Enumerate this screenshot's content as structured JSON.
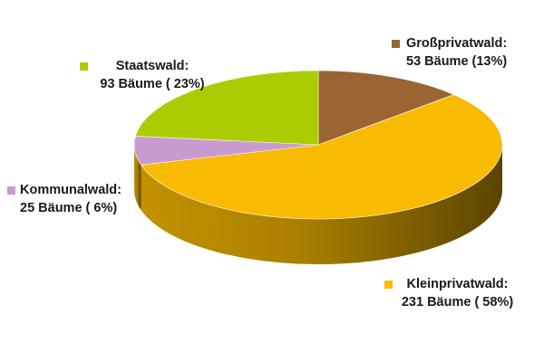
{
  "chart_data": {
    "type": "pie",
    "three_d": true,
    "title": "",
    "unit": "Bäume",
    "slices": [
      {
        "name": "Großprivatwald",
        "value": 53,
        "percent_label": "13%",
        "color": "#9a6433",
        "label_line1": "Großprivatwald:",
        "label_line2": "53 Bäume (13%)"
      },
      {
        "name": "Kleinprivatwald",
        "value": 231,
        "percent_label": "58%",
        "color": "#f8bb00",
        "label_line1": "Kleinprivatwald:",
        "label_line2": "231 Bäume ( 58%)"
      },
      {
        "name": "Kommunalwald",
        "value": 25,
        "percent_label": "6%",
        "color": "#c99ad0",
        "label_line1": "Kommunalwald:",
        "label_line2": "25 Bäume ( 6%)"
      },
      {
        "name": "Staatswald",
        "value": 93,
        "percent_label": "23%",
        "color": "#aacc00",
        "label_line1": "Staatswald:",
        "label_line2": "93 Bäume ( 23%)"
      }
    ]
  }
}
